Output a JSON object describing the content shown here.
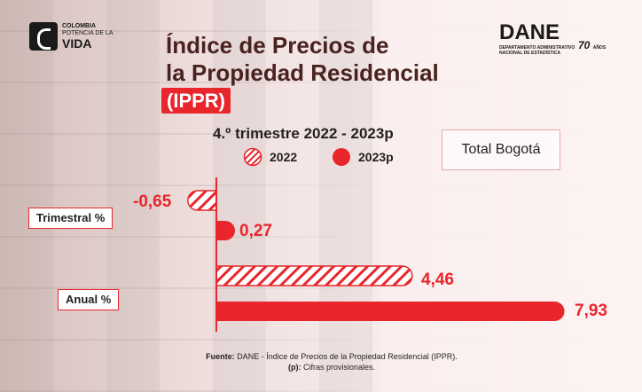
{
  "logos": {
    "colombia_line1": "COLOMBIA",
    "colombia_line2": "POTENCIA DE LA",
    "colombia_line3": "VIDA",
    "dane_name": "DANE",
    "dane_sub1": "DEPARTAMENTO ADMINISTRATIVO",
    "dane_sub2": "NACIONAL DE ESTADÍSTICA",
    "dane_years": "70",
    "dane_years_word": "AÑOS"
  },
  "title_line1": "Índice de Precios de",
  "title_line2": "la Propiedad Residencial",
  "title_abbr": "(IPPR)",
  "period": "4.º trimestre 2022 - 2023p",
  "region": "Total Bogotá",
  "source_label": "Fuente:",
  "source_text": "DANE - Índice de Precios de la Propiedad Residencial (IPPR).",
  "note_label": "(p):",
  "note_text": "Cifras provisionales.",
  "colors": {
    "accent": "#e8262b",
    "title": "#4a2320"
  },
  "chart_data": {
    "type": "bar",
    "orientation": "horizontal",
    "categories": [
      "Trimestral %",
      "Anual %"
    ],
    "series": [
      {
        "name": "2022",
        "values": [
          -0.65,
          4.46
        ],
        "labels": [
          "-0,65",
          "4,46"
        ],
        "style": "hatched"
      },
      {
        "name": "2023p",
        "values": [
          0.27,
          7.93
        ],
        "labels": [
          "0,27",
          "7,93"
        ],
        "style": "solid"
      }
    ],
    "legend_position": "top",
    "grid": false
  }
}
